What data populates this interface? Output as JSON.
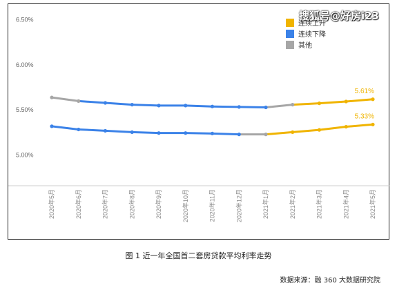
{
  "watermark": "搜狐号@好房i23",
  "caption": "图 1  近一年全国首二套房贷款平均利率走势",
  "source": "数据来源：融 360 大数据研究院",
  "chart_data": {
    "type": "line",
    "categories": [
      "2020年5月",
      "2020年6月",
      "2020年7月",
      "2020年8月",
      "2020年9月",
      "2020年10月",
      "2020年11月",
      "2020年12月",
      "2021年1月",
      "2021年2月",
      "2021年3月",
      "2021年4月",
      "2021年5月"
    ],
    "y_ticks": [
      "6.50%",
      "6.00%",
      "5.50%",
      "5.00%"
    ],
    "y_tick_values": [
      6.5,
      6.0,
      5.5,
      5.0
    ],
    "ylim": [
      4.65,
      6.62
    ],
    "grid": false,
    "legend_position": "top-right",
    "legend": [
      {
        "label": "连续上升",
        "color": "#f0b400"
      },
      {
        "label": "连续下降",
        "color": "#3b82e8"
      },
      {
        "label": "其他",
        "color": "#a6a6a6"
      }
    ],
    "series": [
      {
        "values": [
          5.63,
          5.59,
          5.57,
          5.55,
          5.54,
          5.54,
          5.53,
          5.525,
          5.52,
          5.55,
          5.565,
          5.585,
          5.61
        ],
        "segment_colors": [
          "#a6a6a6",
          "#3b82e8",
          "#3b82e8",
          "#3b82e8",
          "#3b82e8",
          "#3b82e8",
          "#3b82e8",
          "#3b82e8",
          "#a6a6a6",
          "#f0b400",
          "#f0b400",
          "#f0b400"
        ],
        "end_label": "5.61%"
      },
      {
        "values": [
          5.31,
          5.275,
          5.26,
          5.245,
          5.235,
          5.235,
          5.23,
          5.22,
          5.22,
          5.245,
          5.27,
          5.305,
          5.33
        ],
        "segment_colors": [
          "#3b82e8",
          "#3b82e8",
          "#3b82e8",
          "#3b82e8",
          "#3b82e8",
          "#3b82e8",
          "#3b82e8",
          "#a6a6a6",
          "#f0b400",
          "#f0b400",
          "#f0b400",
          "#f0b400"
        ],
        "end_label": "5.33%"
      }
    ]
  }
}
